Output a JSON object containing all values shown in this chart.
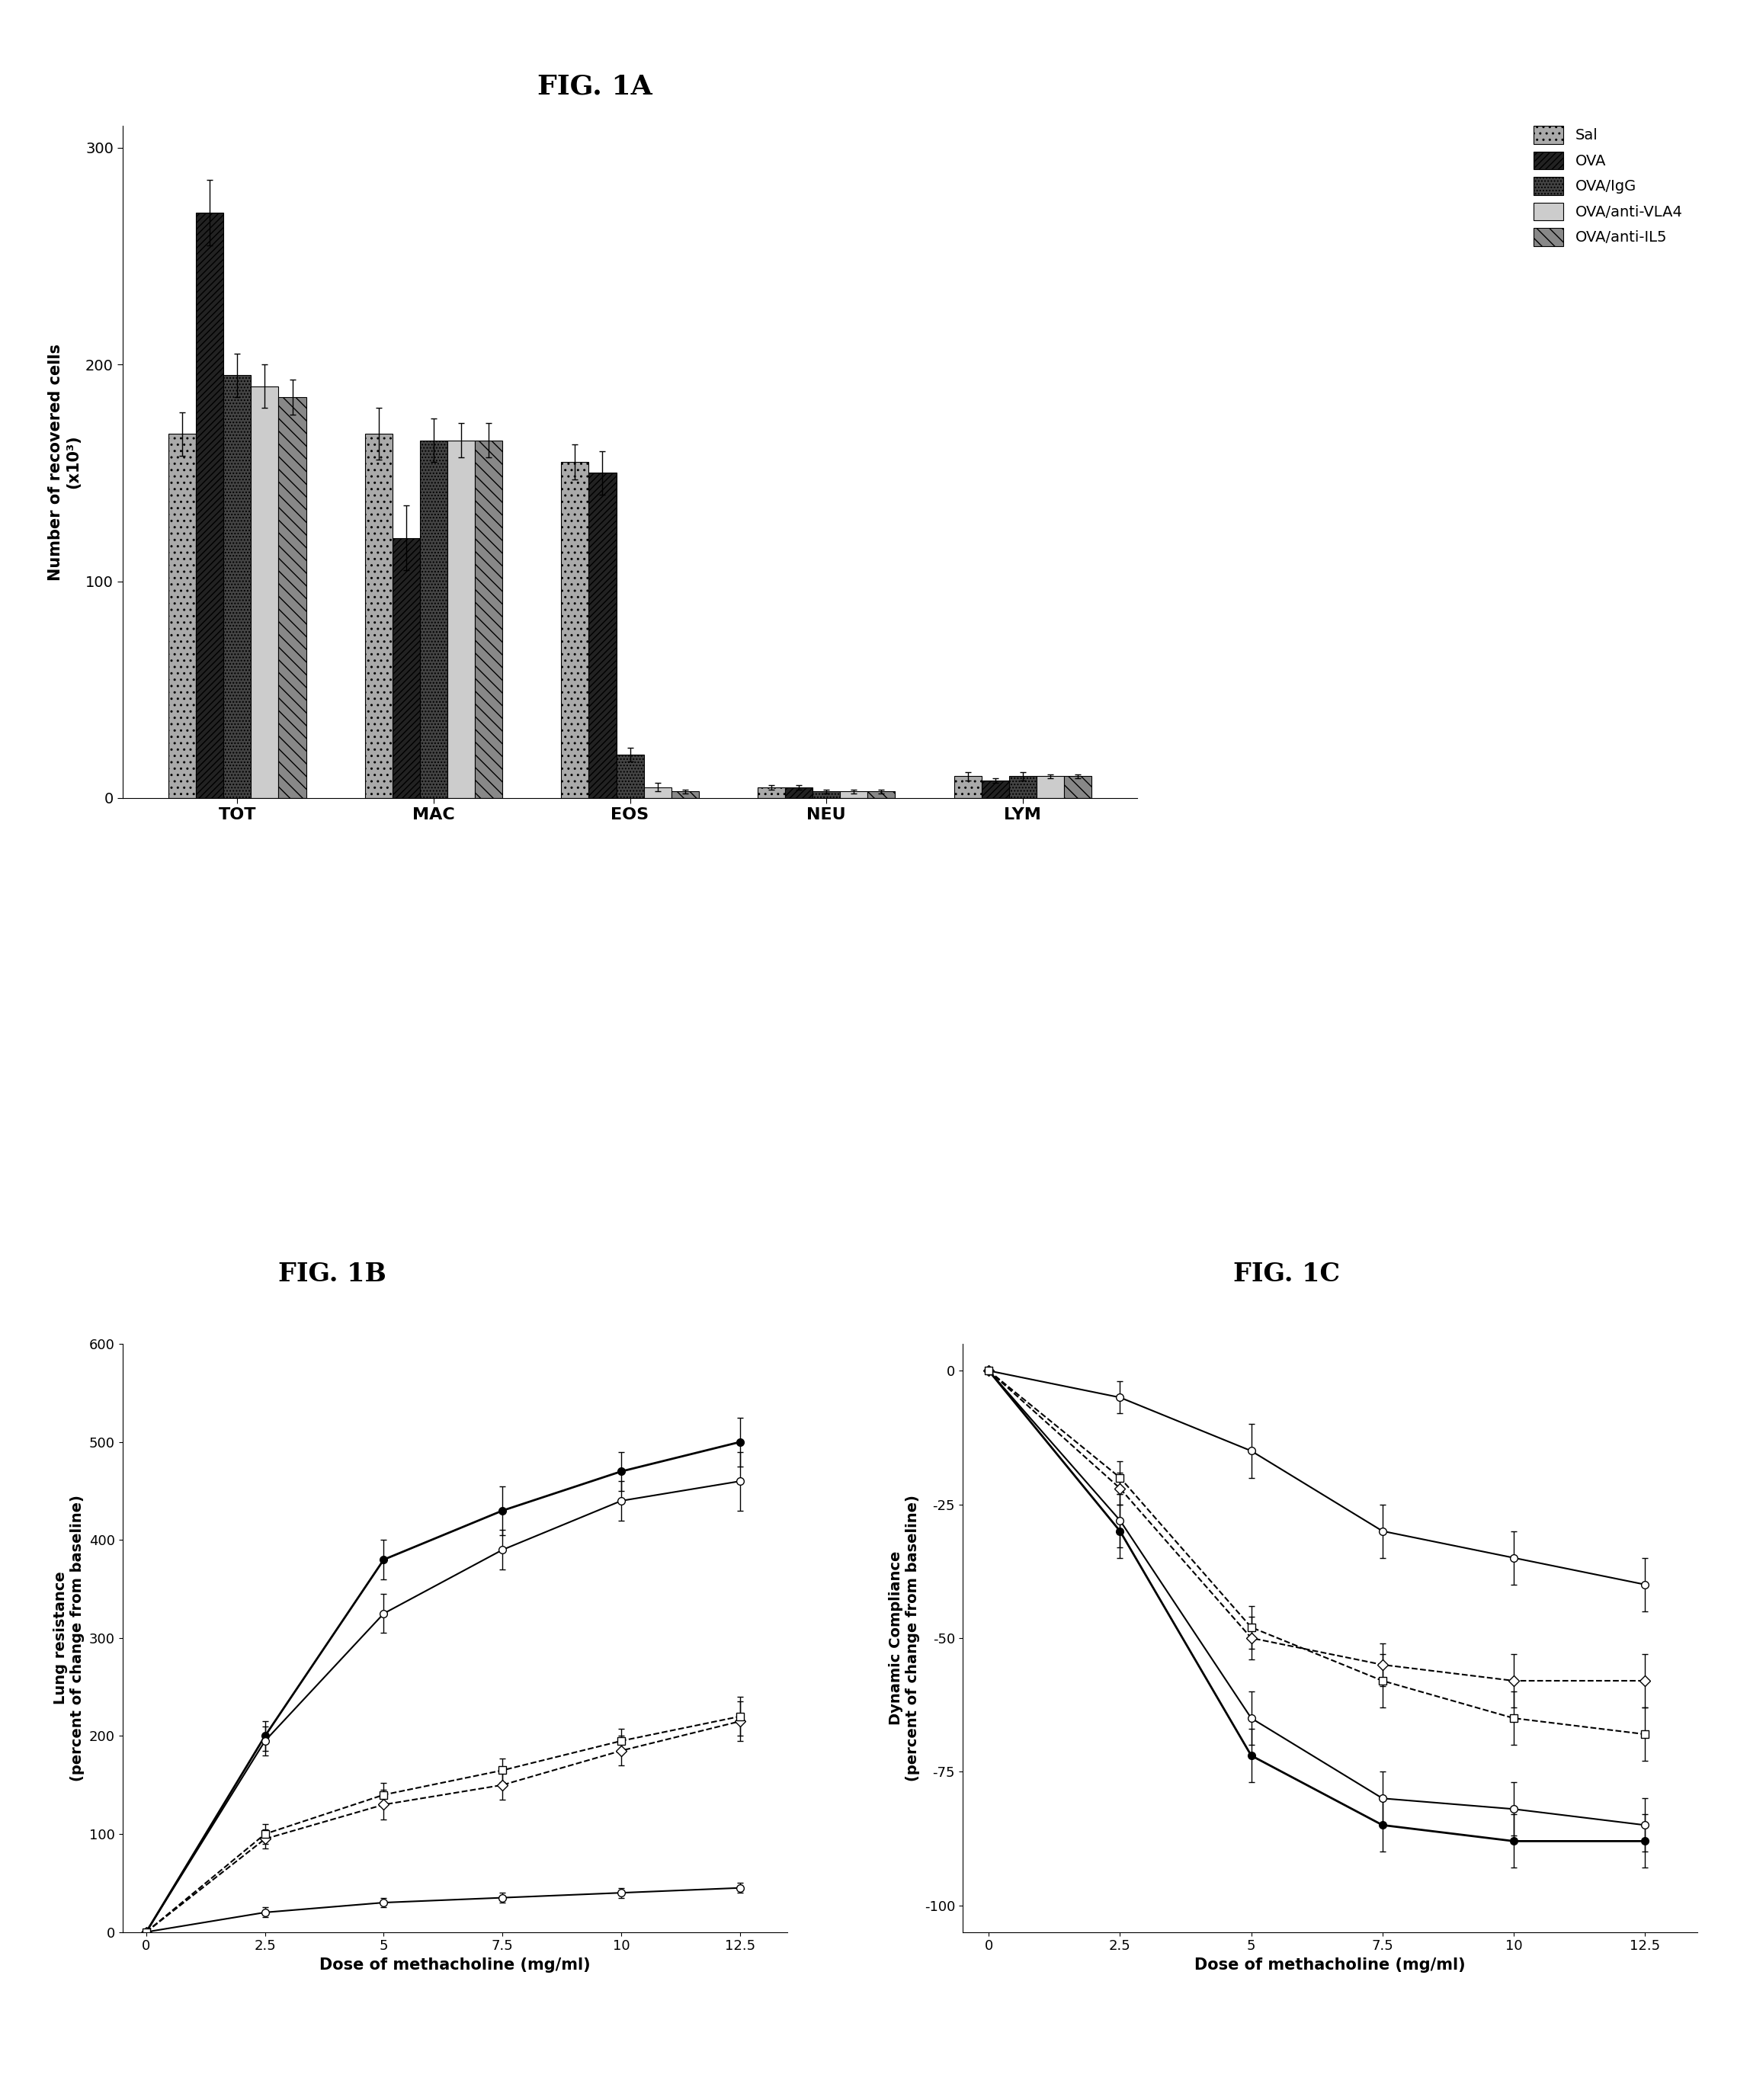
{
  "fig1a": {
    "title": "FIG. 1A",
    "ylabel": "Number of recovered cells\n(x10³)",
    "categories": [
      "TOT",
      "MAC",
      "EOS",
      "NEU",
      "LYM"
    ],
    "groups": [
      "Sal",
      "OVA",
      "OVA/IgG",
      "OVA/anti-VLA4",
      "OVA/anti-IL5"
    ],
    "values": {
      "TOT": [
        168,
        270,
        195,
        190,
        185
      ],
      "MAC": [
        168,
        120,
        165,
        165,
        165
      ],
      "EOS": [
        155,
        150,
        20,
        5,
        3
      ],
      "NEU": [
        5,
        5,
        3,
        3,
        3
      ],
      "LYM": [
        10,
        8,
        10,
        10,
        10
      ]
    },
    "errors": {
      "TOT": [
        10,
        15,
        10,
        10,
        8
      ],
      "MAC": [
        12,
        15,
        10,
        8,
        8
      ],
      "EOS": [
        8,
        10,
        3,
        2,
        1
      ],
      "NEU": [
        1,
        1,
        1,
        1,
        1
      ],
      "LYM": [
        2,
        1,
        2,
        1,
        1
      ]
    },
    "ylim": [
      0,
      310
    ],
    "yticks": [
      0,
      100,
      200,
      300
    ]
  },
  "fig1b": {
    "title": "FIG. 1B",
    "xlabel": "Dose of methacholine (mg/ml)",
    "ylabel": "Lung resistance\n(percent of change from baseline)",
    "xvalues": [
      0,
      2.5,
      5,
      7.5,
      10,
      12.5
    ],
    "series": {
      "Sal": [
        0,
        20,
        30,
        35,
        40,
        45
      ],
      "OVA": [
        0,
        200,
        380,
        430,
        470,
        500
      ],
      "OVA/IgG": [
        0,
        195,
        325,
        390,
        440,
        460
      ],
      "OVA/anti-VLA4": [
        0,
        95,
        130,
        150,
        185,
        215
      ],
      "OVA/anti-IL5": [
        0,
        100,
        140,
        165,
        195,
        220
      ]
    },
    "errors": {
      "Sal": [
        0,
        5,
        5,
        5,
        5,
        5
      ],
      "OVA": [
        0,
        15,
        20,
        25,
        20,
        25
      ],
      "OVA/IgG": [
        0,
        15,
        20,
        20,
        20,
        30
      ],
      "OVA/anti-VLA4": [
        0,
        10,
        15,
        15,
        15,
        20
      ],
      "OVA/anti-IL5": [
        0,
        10,
        12,
        12,
        12,
        20
      ]
    },
    "ylim": [
      0,
      600
    ],
    "yticks": [
      0,
      100,
      200,
      300,
      400,
      500,
      600
    ]
  },
  "fig1c": {
    "title": "FIG. 1C",
    "xlabel": "Dose of methacholine (mg/ml)",
    "ylabel": "Dynamic Compliance\n(percent of change from baseline)",
    "xvalues": [
      0,
      2.5,
      5,
      7.5,
      10,
      12.5
    ],
    "series": {
      "Sal": [
        0,
        -5,
        -15,
        -30,
        -35,
        -40
      ],
      "OVA": [
        0,
        -30,
        -72,
        -85,
        -88,
        -88
      ],
      "OVA/IgG": [
        0,
        -28,
        -65,
        -80,
        -82,
        -85
      ],
      "OVA/anti-VLA4": [
        0,
        -22,
        -50,
        -55,
        -58,
        -58
      ],
      "OVA/anti-IL5": [
        0,
        -20,
        -48,
        -58,
        -65,
        -68
      ]
    },
    "errors": {
      "Sal": [
        0,
        3,
        5,
        5,
        5,
        5
      ],
      "OVA": [
        0,
        5,
        5,
        5,
        5,
        5
      ],
      "OVA/IgG": [
        0,
        5,
        5,
        5,
        5,
        5
      ],
      "OVA/anti-VLA4": [
        0,
        3,
        4,
        4,
        5,
        5
      ],
      "OVA/anti-IL5": [
        0,
        3,
        4,
        5,
        5,
        5
      ]
    },
    "ylim": [
      -105,
      5
    ],
    "yticks": [
      0,
      -25,
      -50,
      -75,
      -100
    ]
  },
  "legend_labels": [
    "Sal",
    "OVA",
    "OVA/IgG",
    "OVA/anti-VLA4",
    "OVA/anti-IL5"
  ]
}
